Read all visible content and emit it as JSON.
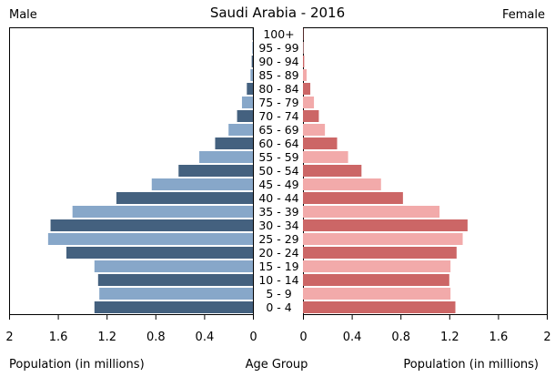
{
  "chart_data": {
    "type": "bar",
    "title": "Saudi Arabia - 2016",
    "male_label": "Male",
    "female_label": "Female",
    "xlabel_left": "Population (in millions)",
    "xlabel_center": "Age Group",
    "xlabel_right": "Population (in millions)",
    "xlim": [
      0,
      2
    ],
    "x_ticks": [
      "2",
      "1.6",
      "1.2",
      "0.8",
      "0.4",
      "0"
    ],
    "x_ticks_right": [
      "0",
      "0.4",
      "0.8",
      "1.2",
      "1.6",
      "2"
    ],
    "tick_values": [
      2,
      1.6,
      1.2,
      0.8,
      0.4,
      0
    ],
    "tick_values_right": [
      0,
      0.4,
      0.8,
      1.2,
      1.6,
      2
    ],
    "categories": [
      "0 - 4",
      "5 - 9",
      "10 - 14",
      "15 - 19",
      "20 - 24",
      "25 - 29",
      "30 - 34",
      "35 - 39",
      "40 - 44",
      "45 - 49",
      "50 - 54",
      "55 - 59",
      "60 - 64",
      "65 - 69",
      "70 - 74",
      "75 - 79",
      "80 - 84",
      "85 - 89",
      "90 - 94",
      "95 - 99",
      "100+"
    ],
    "series": [
      {
        "name": "Male",
        "values": [
          1.3,
          1.26,
          1.27,
          1.3,
          1.53,
          1.68,
          1.66,
          1.48,
          1.12,
          0.83,
          0.61,
          0.44,
          0.31,
          0.2,
          0.13,
          0.09,
          0.05,
          0.02,
          0.01,
          0.005,
          0.003
        ]
      },
      {
        "name": "Female",
        "values": [
          1.25,
          1.21,
          1.2,
          1.21,
          1.26,
          1.31,
          1.35,
          1.12,
          0.82,
          0.64,
          0.48,
          0.37,
          0.28,
          0.18,
          0.13,
          0.09,
          0.06,
          0.03,
          0.01,
          0.005,
          0.003
        ]
      }
    ],
    "colors": {
      "male_dark": "#44617f",
      "male_light": "#87a7c9",
      "female_dark": "#cc6666",
      "female_light": "#f2aaaa"
    }
  }
}
